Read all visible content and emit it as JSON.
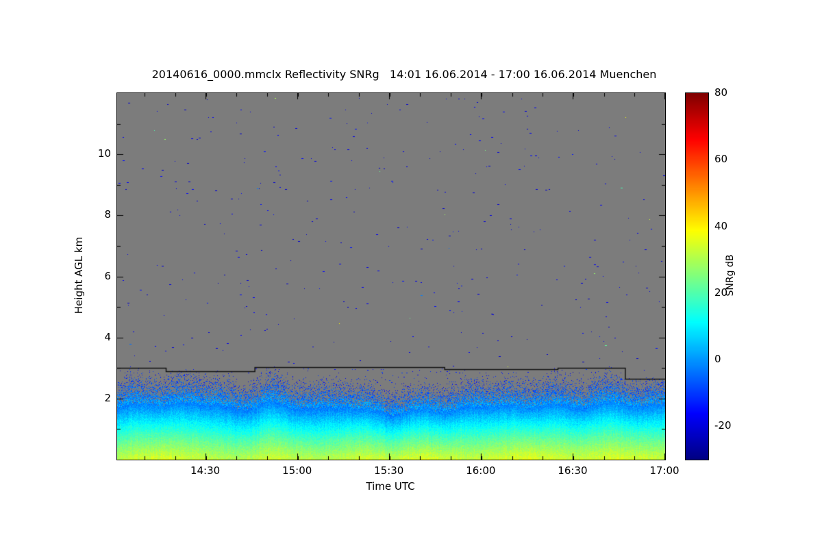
{
  "page": {
    "background": "#ffffff"
  },
  "chart_data": {
    "type": "heatmap",
    "title": "20140616_0000.mmclx Reflectivity SNRg   14:01 16.06.2014 - 17:00 16.06.2014 Muenchen",
    "file": "20140616_0000.mmclx",
    "quantity": "Reflectivity SNRg",
    "time_start": "14:01 16.06.2014",
    "time_end": "17:00 16.06.2014",
    "station": "Muenchen",
    "xlabel": "Time UTC",
    "ylabel": "Height AGL km",
    "colorbar_label": "SNRg dB",
    "x_axis": {
      "start_min": 841,
      "end_min": 1020,
      "minor_step_min": 10,
      "major_ticks": [
        {
          "t": 870,
          "label": "14:30"
        },
        {
          "t": 900,
          "label": "15:00"
        },
        {
          "t": 930,
          "label": "15:30"
        },
        {
          "t": 960,
          "label": "16:00"
        },
        {
          "t": 990,
          "label": "16:30"
        },
        {
          "t": 1020,
          "label": "17:00"
        }
      ]
    },
    "y_axis": {
      "min_km": 0,
      "max_km": 12,
      "minor_step_km": 1,
      "major_ticks": [
        {
          "v": 2,
          "label": "2"
        },
        {
          "v": 4,
          "label": "4"
        },
        {
          "v": 6,
          "label": "6"
        },
        {
          "v": 8,
          "label": "8"
        },
        {
          "v": 10,
          "label": "10"
        }
      ]
    },
    "colorbar": {
      "min_db": -30,
      "max_db": 80,
      "ticks": [
        {
          "v": 80,
          "label": "80"
        },
        {
          "v": 60,
          "label": "60"
        },
        {
          "v": 40,
          "label": "40"
        },
        {
          "v": 20,
          "label": "20"
        },
        {
          "v": 0,
          "label": "0"
        },
        {
          "v": -20,
          "label": "-20"
        }
      ],
      "jet_stops": [
        [
          0.0,
          [
            0,
            0,
            131
          ]
        ],
        [
          0.125,
          [
            0,
            0,
            255
          ]
        ],
        [
          0.375,
          [
            0,
            255,
            255
          ]
        ],
        [
          0.625,
          [
            255,
            255,
            0
          ]
        ],
        [
          0.875,
          [
            255,
            0,
            0
          ]
        ],
        [
          1.0,
          [
            128,
            0,
            0
          ]
        ]
      ]
    },
    "no_signal_gray": "#7c7c7c",
    "frame_color": "#000000",
    "scan_line": {
      "color": "#141414",
      "segments_km": [
        [
          841,
          857,
          3.0
        ],
        [
          857,
          886,
          2.9
        ],
        [
          886,
          948,
          3.02
        ],
        [
          948,
          985,
          2.95
        ],
        [
          985,
          1007,
          3.0
        ],
        [
          1007,
          1020,
          2.65
        ]
      ]
    },
    "boundary_layer": {
      "sample_step_min": 5,
      "top_km": [
        2.1,
        2.2,
        2.3,
        2.25,
        2.3,
        2.4,
        2.35,
        2.2,
        2.1,
        2.2,
        2.3,
        2.2,
        2.1,
        2.0,
        2.1,
        2.2,
        2.1,
        2.0,
        1.95,
        2.0,
        2.1,
        2.05,
        2.0,
        2.1,
        2.2,
        2.15,
        2.1,
        2.2,
        2.3,
        2.25,
        2.2,
        2.3,
        2.35,
        2.3,
        2.2,
        2.15,
        2.2
      ],
      "surface_snr_db": [
        31,
        33,
        34,
        35,
        34,
        33,
        32,
        31,
        30,
        32,
        34,
        33,
        32,
        30,
        31,
        33,
        34,
        33,
        32,
        34,
        35,
        34,
        33,
        32,
        33,
        34,
        35,
        36,
        35,
        34,
        33,
        34,
        35,
        35,
        34,
        33,
        34
      ],
      "snr_at_top_db": -20
    },
    "clutter_band": {
      "bottom_factor": 1.35,
      "density": 0.022,
      "mean_db": -14
    },
    "speckles": {
      "count": 340,
      "mean_db": -18,
      "bright_fraction": 0.05
    }
  }
}
